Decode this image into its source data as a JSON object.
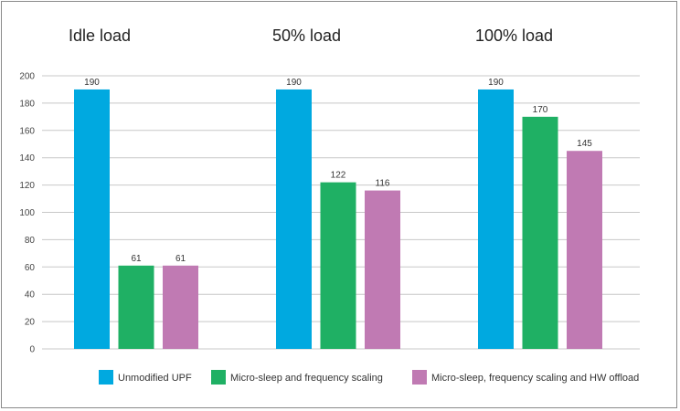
{
  "chart_data": {
    "type": "bar",
    "categories": [
      "Idle load",
      "50% load",
      "100% load"
    ],
    "series": [
      {
        "name": "Unmodified UPF",
        "values": [
          190,
          190,
          190
        ],
        "color": "#00a9e0"
      },
      {
        "name": "Micro-sleep and frequency scaling",
        "values": [
          61,
          122,
          170
        ],
        "color": "#1fb064"
      },
      {
        "name": "Micro-sleep, frequency scaling and HW offload",
        "values": [
          61,
          116,
          145
        ],
        "color": "#c07ab3"
      }
    ],
    "ylim": [
      0,
      200
    ],
    "yticks": [
      0,
      20,
      40,
      60,
      80,
      100,
      120,
      140,
      160,
      180,
      200
    ],
    "grid": true,
    "legend": "bottom",
    "data_labels": true
  }
}
